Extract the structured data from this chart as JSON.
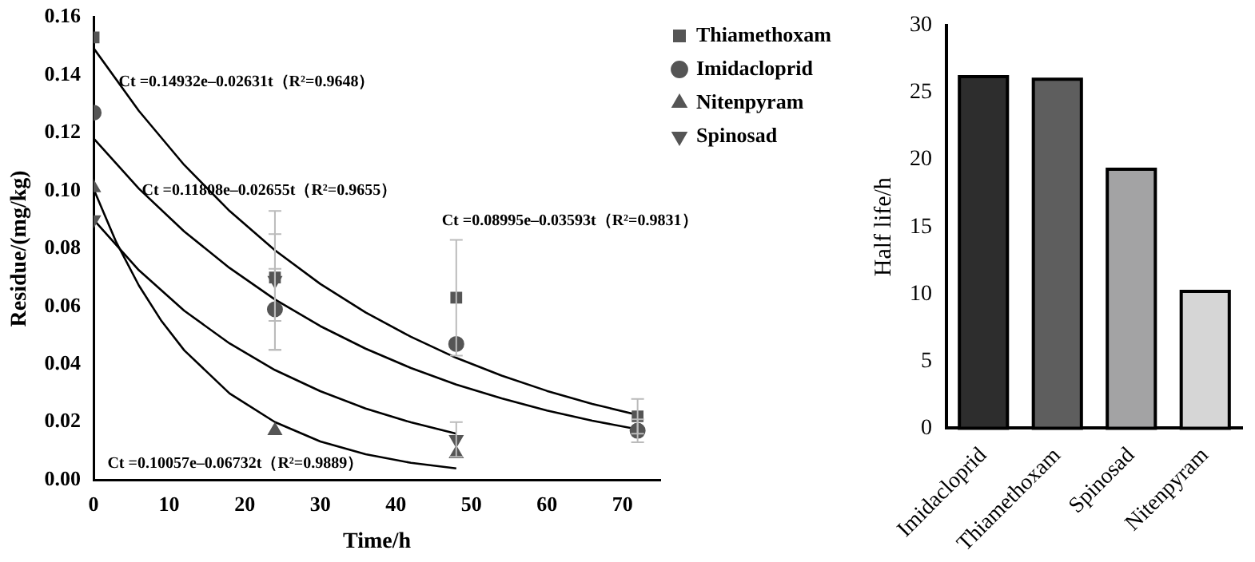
{
  "chart_data": [
    {
      "type": "scatter",
      "xlabel": "Time/h",
      "ylabel": "Residue/(mg/kg)",
      "x": [
        0,
        24,
        48,
        72
      ],
      "xlim": [
        0,
        75
      ],
      "xticks": [
        0,
        10,
        20,
        30,
        40,
        50,
        60,
        70
      ],
      "ylim": [
        0,
        0.16
      ],
      "yticks": [
        {
          "value": 0,
          "label": "0.00"
        },
        {
          "value": 0.02,
          "label": "0.02"
        },
        {
          "value": 0.04,
          "label": "0.04"
        },
        {
          "value": 0.06,
          "label": "0.06"
        },
        {
          "value": 0.08,
          "label": "0.08"
        },
        {
          "value": 0.1,
          "label": "0.10"
        },
        {
          "value": 0.12,
          "label": "0.12"
        },
        {
          "value": 0.14,
          "label": "0.14"
        },
        {
          "value": 0.16,
          "label": "0.16"
        }
      ],
      "grid": false,
      "legend": "top right",
      "series": [
        {
          "name": "Thiamethoxam",
          "color": "#555555",
          "marker": "square",
          "values": [
            0.153,
            0.07,
            0.063,
            0.022
          ],
          "errors": [
            null,
            0.015,
            0.02,
            0.006
          ]
        },
        {
          "name": "Imidacloprid",
          "color": "#555555",
          "marker": "circle",
          "values": [
            0.127,
            0.059,
            0.047,
            0.017
          ],
          "errors": [
            null,
            0.014,
            null,
            0.004
          ]
        },
        {
          "name": "Nitenpyram",
          "color": "#555555",
          "marker": "triangle",
          "values": [
            0.101,
            0.017,
            0.009
          ],
          "x": [
            0,
            24,
            48
          ]
        },
        {
          "name": "Spinosad",
          "color": "#555555",
          "marker": "triangle-down",
          "values": [
            0.09,
            0.069,
            0.014
          ],
          "x": [
            0,
            24,
            48
          ],
          "errors": [
            null,
            0.024,
            0.006
          ]
        },
        {
          "type": "line",
          "color": "#000000",
          "marker": "none",
          "x": [
            0,
            6,
            12,
            18,
            24,
            30,
            36,
            42,
            48,
            54,
            60,
            66,
            72
          ],
          "values": [
            0.1493,
            0.1276,
            0.1089,
            0.093,
            0.0794,
            0.0678,
            0.0579,
            0.0495,
            0.0422,
            0.0361,
            0.0308,
            0.0263,
            0.0225
          ]
        },
        {
          "type": "line",
          "color": "#000000",
          "marker": "none",
          "x": [
            0,
            6,
            12,
            18,
            24,
            30,
            36,
            42,
            48,
            54,
            60,
            66,
            72
          ],
          "values": [
            0.1181,
            0.1007,
            0.0859,
            0.0733,
            0.0624,
            0.0532,
            0.0454,
            0.0387,
            0.033,
            0.0282,
            0.024,
            0.0205,
            0.0175
          ]
        },
        {
          "type": "line",
          "color": "#000000",
          "marker": "none",
          "x": [
            0,
            6,
            12,
            18,
            24,
            30,
            36,
            42,
            48
          ],
          "values": [
            0.09,
            0.0725,
            0.0585,
            0.0472,
            0.038,
            0.0307,
            0.0247,
            0.0199,
            0.016
          ]
        },
        {
          "type": "line",
          "color": "#000000",
          "marker": "none",
          "x": [
            0,
            3,
            6,
            9,
            12,
            18,
            24,
            30,
            36,
            42,
            48
          ],
          "values": [
            0.1006,
            0.0822,
            0.0672,
            0.0549,
            0.0448,
            0.0299,
            0.02,
            0.0133,
            0.0089,
            0.0059,
            0.004
          ]
        }
      ],
      "annotations": [
        "Ct =0.14932e–0.02631t（R²=0.9648）",
        "Ct =0.11808e–0.02655t（R²=0.9655）",
        "Ct =0.08995e–0.03593t（R²=0.9831）",
        "Ct =0.10057e–0.06732t（R²=0.9889）"
      ]
    },
    {
      "type": "bar",
      "ylabel": "Half life/h",
      "categories": [
        "Imidacloprid",
        "Thiamethoxam",
        "Spinosad",
        "Nitenpyram"
      ],
      "values": [
        26.2,
        26.0,
        19.3,
        10.2
      ],
      "colors": [
        "#2d2d2d",
        "#5e5e5e",
        "#a3a3a4",
        "#d6d6d6"
      ],
      "ylim": [
        0,
        30
      ],
      "yticks": [
        0,
        5,
        10,
        15,
        20,
        25,
        30
      ],
      "grid": false
    }
  ]
}
